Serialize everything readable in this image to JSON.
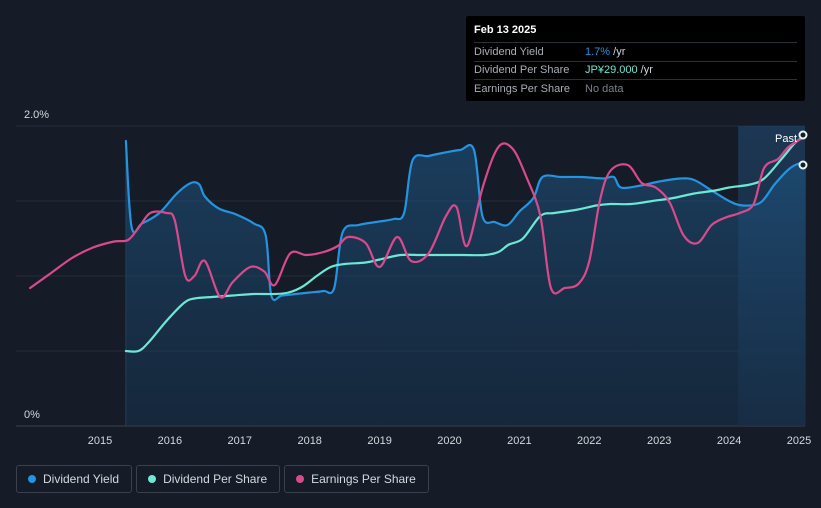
{
  "tooltip": {
    "date": "Feb 13 2025",
    "rows": [
      {
        "label": "Dividend Yield",
        "value": "1.7%",
        "unit": " /yr"
      },
      {
        "label": "Dividend Per Share",
        "value": "JP¥29.000",
        "unit": " /yr"
      },
      {
        "label": "Earnings Per Share",
        "value": "No data",
        "unit": ""
      }
    ]
  },
  "past_label": "Past",
  "legend": [
    {
      "label": "Dividend Yield",
      "color": "#2394df"
    },
    {
      "label": "Dividend Per Share",
      "color": "#6ee7d4"
    },
    {
      "label": "Earnings Per Share",
      "color": "#d94a8c"
    }
  ],
  "chart_data": {
    "type": "line",
    "x_ticks": [
      "2015",
      "2016",
      "2017",
      "2018",
      "2019",
      "2020",
      "2021",
      "2022",
      "2023",
      "2024",
      "2025"
    ],
    "y_ticks": [
      "0%",
      "2.0%"
    ],
    "ylim": [
      0,
      2.0
    ],
    "xlim": [
      2014.0,
      2025.13
    ],
    "past_region_start": 2024.13,
    "colors": {
      "yield": "#2394df",
      "dps": "#6ee7d4",
      "eps": "#d94a8c"
    },
    "series": [
      {
        "name": "Dividend Yield",
        "key": "yield",
        "points": [
          [
            2015.37,
            1.9
          ],
          [
            2015.45,
            1.33
          ],
          [
            2015.6,
            1.35
          ],
          [
            2015.85,
            1.42
          ],
          [
            2016.1,
            1.55
          ],
          [
            2016.3,
            1.62
          ],
          [
            2016.42,
            1.61
          ],
          [
            2016.5,
            1.53
          ],
          [
            2016.7,
            1.45
          ],
          [
            2016.95,
            1.41
          ],
          [
            2017.2,
            1.35
          ],
          [
            2017.37,
            1.27
          ],
          [
            2017.45,
            0.87
          ],
          [
            2017.6,
            0.87
          ],
          [
            2017.8,
            0.88
          ],
          [
            2018.0,
            0.89
          ],
          [
            2018.2,
            0.9
          ],
          [
            2018.35,
            0.92
          ],
          [
            2018.47,
            1.29
          ],
          [
            2018.7,
            1.34
          ],
          [
            2018.95,
            1.36
          ],
          [
            2019.2,
            1.38
          ],
          [
            2019.35,
            1.42
          ],
          [
            2019.47,
            1.77
          ],
          [
            2019.7,
            1.8
          ],
          [
            2019.9,
            1.82
          ],
          [
            2020.15,
            1.84
          ],
          [
            2020.35,
            1.84
          ],
          [
            2020.47,
            1.4
          ],
          [
            2020.65,
            1.36
          ],
          [
            2020.83,
            1.34
          ],
          [
            2021.0,
            1.43
          ],
          [
            2021.2,
            1.52
          ],
          [
            2021.33,
            1.66
          ],
          [
            2021.6,
            1.66
          ],
          [
            2021.9,
            1.66
          ],
          [
            2022.2,
            1.65
          ],
          [
            2022.35,
            1.66
          ],
          [
            2022.45,
            1.59
          ],
          [
            2022.7,
            1.6
          ],
          [
            2023.0,
            1.63
          ],
          [
            2023.3,
            1.65
          ],
          [
            2023.5,
            1.64
          ],
          [
            2023.75,
            1.57
          ],
          [
            2024.0,
            1.5
          ],
          [
            2024.2,
            1.47
          ],
          [
            2024.45,
            1.49
          ],
          [
            2024.65,
            1.61
          ],
          [
            2024.85,
            1.71
          ],
          [
            2025.0,
            1.75
          ],
          [
            2025.1,
            1.74
          ]
        ]
      },
      {
        "name": "Dividend Per Share",
        "key": "dps",
        "points": [
          [
            2015.37,
            0.5
          ],
          [
            2015.55,
            0.5
          ],
          [
            2015.7,
            0.56
          ],
          [
            2015.95,
            0.7
          ],
          [
            2016.2,
            0.82
          ],
          [
            2016.35,
            0.85
          ],
          [
            2016.6,
            0.86
          ],
          [
            2016.9,
            0.87
          ],
          [
            2017.2,
            0.88
          ],
          [
            2017.5,
            0.88
          ],
          [
            2017.7,
            0.89
          ],
          [
            2017.9,
            0.93
          ],
          [
            2018.1,
            1.0
          ],
          [
            2018.3,
            1.06
          ],
          [
            2018.5,
            1.08
          ],
          [
            2018.8,
            1.09
          ],
          [
            2019.0,
            1.11
          ],
          [
            2019.3,
            1.14
          ],
          [
            2019.6,
            1.14
          ],
          [
            2019.9,
            1.14
          ],
          [
            2020.2,
            1.14
          ],
          [
            2020.5,
            1.14
          ],
          [
            2020.7,
            1.16
          ],
          [
            2020.85,
            1.21
          ],
          [
            2021.05,
            1.25
          ],
          [
            2021.3,
            1.4
          ],
          [
            2021.5,
            1.42
          ],
          [
            2021.8,
            1.44
          ],
          [
            2022.1,
            1.47
          ],
          [
            2022.3,
            1.48
          ],
          [
            2022.6,
            1.48
          ],
          [
            2022.9,
            1.5
          ],
          [
            2023.2,
            1.52
          ],
          [
            2023.5,
            1.55
          ],
          [
            2023.8,
            1.57
          ],
          [
            2024.0,
            1.59
          ],
          [
            2024.3,
            1.61
          ],
          [
            2024.5,
            1.65
          ],
          [
            2024.75,
            1.78
          ],
          [
            2024.95,
            1.89
          ],
          [
            2025.1,
            1.94
          ]
        ]
      },
      {
        "name": "Earnings Per Share",
        "key": "eps",
        "points": [
          [
            2014.0,
            0.92
          ],
          [
            2014.3,
            1.02
          ],
          [
            2014.6,
            1.12
          ],
          [
            2014.9,
            1.19
          ],
          [
            2015.2,
            1.23
          ],
          [
            2015.4,
            1.24
          ],
          [
            2015.55,
            1.32
          ],
          [
            2015.72,
            1.42
          ],
          [
            2015.95,
            1.42
          ],
          [
            2016.07,
            1.37
          ],
          [
            2016.22,
            1.0
          ],
          [
            2016.35,
            1.0
          ],
          [
            2016.5,
            1.1
          ],
          [
            2016.72,
            0.86
          ],
          [
            2016.9,
            0.96
          ],
          [
            2017.15,
            1.06
          ],
          [
            2017.35,
            1.03
          ],
          [
            2017.5,
            0.94
          ],
          [
            2017.72,
            1.15
          ],
          [
            2017.95,
            1.14
          ],
          [
            2018.2,
            1.16
          ],
          [
            2018.4,
            1.2
          ],
          [
            2018.55,
            1.26
          ],
          [
            2018.8,
            1.22
          ],
          [
            2019.0,
            1.06
          ],
          [
            2019.25,
            1.26
          ],
          [
            2019.45,
            1.1
          ],
          [
            2019.7,
            1.15
          ],
          [
            2019.95,
            1.4
          ],
          [
            2020.1,
            1.46
          ],
          [
            2020.25,
            1.2
          ],
          [
            2020.48,
            1.6
          ],
          [
            2020.7,
            1.86
          ],
          [
            2020.9,
            1.85
          ],
          [
            2021.1,
            1.66
          ],
          [
            2021.3,
            1.4
          ],
          [
            2021.45,
            0.92
          ],
          [
            2021.65,
            0.92
          ],
          [
            2021.85,
            0.95
          ],
          [
            2022.0,
            1.1
          ],
          [
            2022.15,
            1.5
          ],
          [
            2022.3,
            1.7
          ],
          [
            2022.55,
            1.74
          ],
          [
            2022.75,
            1.62
          ],
          [
            2022.95,
            1.59
          ],
          [
            2023.15,
            1.49
          ],
          [
            2023.35,
            1.27
          ],
          [
            2023.55,
            1.22
          ],
          [
            2023.75,
            1.34
          ],
          [
            2023.95,
            1.39
          ],
          [
            2024.15,
            1.42
          ],
          [
            2024.35,
            1.48
          ],
          [
            2024.5,
            1.72
          ],
          [
            2024.7,
            1.78
          ],
          [
            2024.85,
            1.86
          ],
          [
            2025.05,
            1.92
          ]
        ]
      }
    ]
  }
}
